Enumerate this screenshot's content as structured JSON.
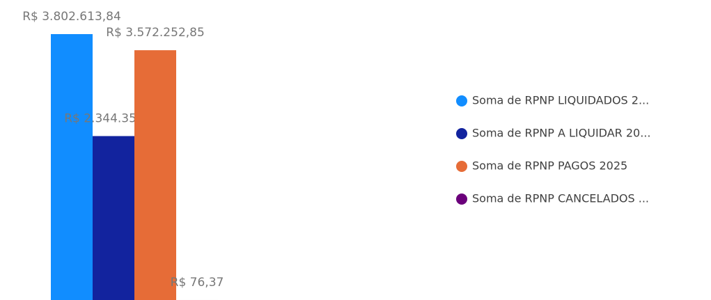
{
  "chart_data": {
    "type": "bar",
    "series": [
      {
        "name": "Soma de RPNP LIQUIDADOS 2...",
        "color": "#118DFF",
        "values": [
          3802613.84
        ],
        "value_labels": [
          "R$ 3.802.613,84"
        ]
      },
      {
        "name": "Soma de RPNP A LIQUIDAR 20...",
        "color": "#12239E",
        "values": [
          2344350.65
        ],
        "value_labels": [
          "R$ 2.344.350,65"
        ]
      },
      {
        "name": "Soma de RPNP PAGOS 2025",
        "color": "#E66C37",
        "values": [
          3572252.85
        ],
        "value_labels": [
          "R$ 3.572.252,85"
        ]
      },
      {
        "name": "Soma de RPNP CANCELADOS ...",
        "color": "#6B007B",
        "values": [
          76.37
        ],
        "value_labels": [
          "R$ 76,37"
        ]
      }
    ]
  }
}
